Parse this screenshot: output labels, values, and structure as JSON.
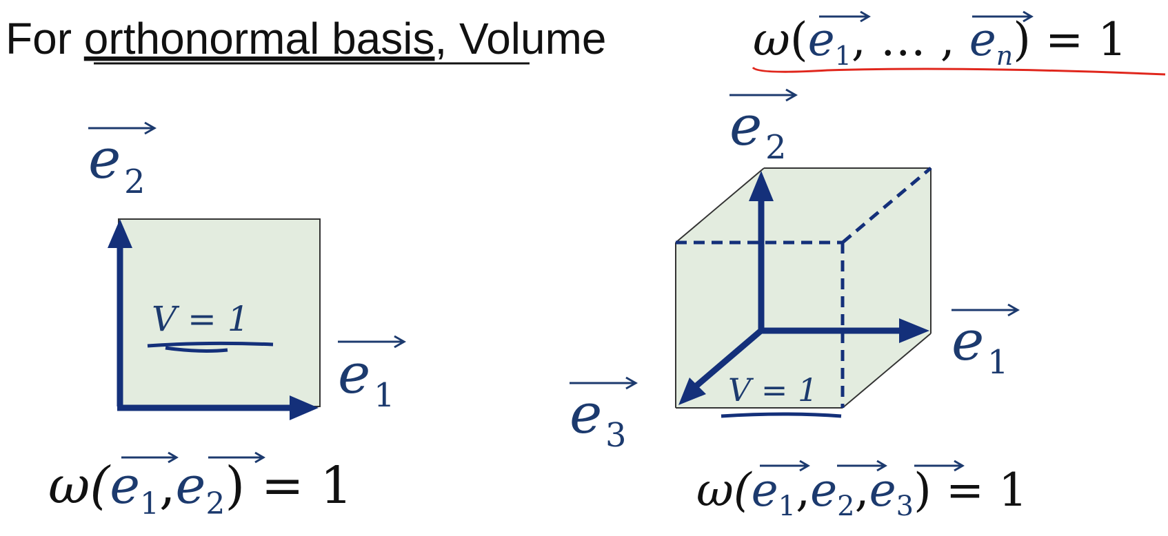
{
  "title": {
    "prefix": "For ",
    "underlined": "orthonormal basis",
    "middle": ", Volume ",
    "formula": "ω(e₁, … , eₙ) = 1"
  },
  "left_diagram": {
    "vec_h_label": "e",
    "vec_h_sub": "1",
    "vec_v_label": "e",
    "vec_v_sub": "2",
    "volume_label": "V = 1",
    "formula_omega": "ω(",
    "formula_e1": "e",
    "formula_e1_sub": "1",
    "formula_e2": "e",
    "formula_e2_sub": "2",
    "formula_end": ") = 1"
  },
  "right_diagram": {
    "vec_x_label": "e",
    "vec_x_sub": "1",
    "vec_y_label": "e",
    "vec_y_sub": "2",
    "vec_z_label": "e",
    "vec_z_sub": "3",
    "volume_label": "V = 1",
    "formula_omega": "ω(",
    "formula_e1": "e",
    "formula_e1_sub": "1",
    "formula_e2": "e",
    "formula_e2_sub": "2",
    "formula_e3": "e",
    "formula_e3_sub": "3",
    "formula_end": ") = 1"
  },
  "colors": {
    "vector": "#14307a",
    "fill": "#e3ecdf",
    "annotation": "#e0261c",
    "text": "#111111"
  }
}
